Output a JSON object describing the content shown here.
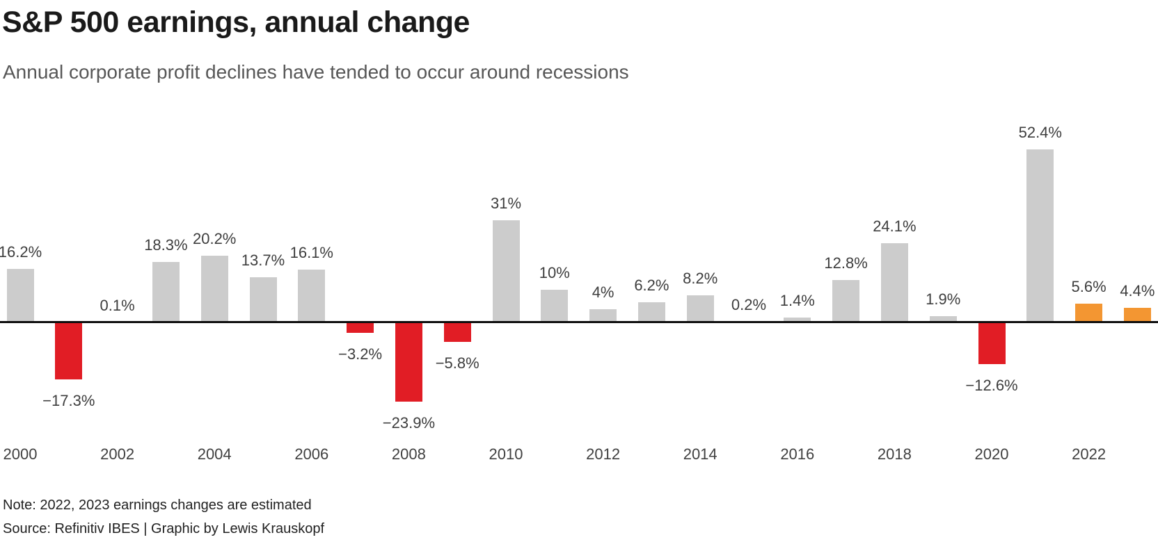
{
  "header": {
    "title": "S&P 500 earnings, annual change",
    "subtitle": "Annual corporate profit declines have tended to occur around recessions"
  },
  "chart_data": {
    "type": "bar",
    "title": "S&P 500 earnings, annual change",
    "subtitle": "Annual corporate profit declines have tended to occur around recessions",
    "xlabel": "",
    "ylabel": "",
    "ylim": [
      -30,
      60
    ],
    "grid": false,
    "legend": null,
    "categories": [
      2000,
      2001,
      2002,
      2003,
      2004,
      2005,
      2006,
      2007,
      2008,
      2009,
      2010,
      2011,
      2012,
      2013,
      2014,
      2015,
      2016,
      2017,
      2018,
      2019,
      2020,
      2021,
      2022,
      2023
    ],
    "values": [
      16.2,
      -17.3,
      0.1,
      18.3,
      20.2,
      13.7,
      16.1,
      -3.2,
      -23.9,
      -5.8,
      31,
      10,
      4,
      6.2,
      8.2,
      0.2,
      1.4,
      12.8,
      24.1,
      1.9,
      -12.6,
      52.4,
      5.6,
      4.4
    ],
    "point_labels": [
      "16.2%",
      "−17.3%",
      "0.1%",
      "18.3%",
      "20.2%",
      "13.7%",
      "16.1%",
      "−3.2%",
      "−23.9%",
      "−5.8%",
      "31%",
      "10%",
      "4%",
      "6.2%",
      "8.2%",
      "0.2%",
      "1.4%",
      "12.8%",
      "24.1%",
      "1.9%",
      "−12.6%",
      "52.4%",
      "5.6%",
      "4.4%"
    ],
    "x_tick_labels": [
      "2000",
      "2002",
      "2004",
      "2006",
      "2008",
      "2010",
      "2012",
      "2014",
      "2016",
      "2018",
      "2020",
      "2022"
    ],
    "estimated_years": [
      2022,
      2023
    ],
    "colors": {
      "positive": "#cccccc",
      "negative": "#e11d25",
      "estimate": "#f39632",
      "axis_line": "#0d0d0d"
    }
  },
  "footer": {
    "note": "Note: 2022, 2023 earnings changes are estimated",
    "source": "Source: Refinitiv IBES | Graphic by Lewis Krauskopf"
  }
}
